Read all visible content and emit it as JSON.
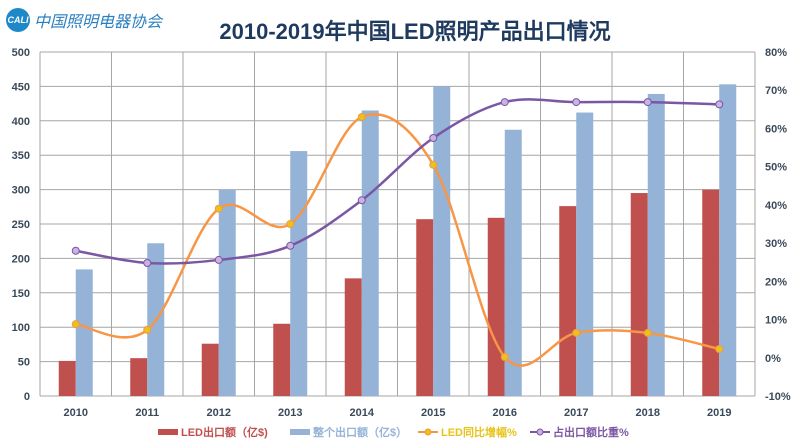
{
  "logo": {
    "mark": "CALI",
    "org": "中国照明电器协会"
  },
  "chart_data": {
    "type": "bar+line",
    "title": "2010-2019年中国LED照明产品出口情况",
    "categories": [
      "2010",
      "2011",
      "2012",
      "2013",
      "2014",
      "2015",
      "2016",
      "2017",
      "2018",
      "2019"
    ],
    "y_left": {
      "range": [
        0,
        500
      ],
      "ticks": [
        "0",
        "50",
        "100",
        "150",
        "200",
        "250",
        "300",
        "350",
        "400",
        "450",
        "500"
      ]
    },
    "y_right": {
      "range": [
        -10,
        80
      ],
      "ticks": [
        "-10%",
        "0%",
        "10%",
        "20%",
        "30%",
        "40%",
        "50%",
        "60%",
        "70%",
        "80%"
      ]
    },
    "grid": true,
    "legend_placement": "bottom",
    "series": [
      {
        "name": "LED出口额（亿$)",
        "type": "bar",
        "axis": "left",
        "color": "#c0504d",
        "values": [
          51,
          55,
          76,
          105,
          171,
          257,
          259,
          276,
          295,
          300
        ]
      },
      {
        "name": "整个出口额（亿$）",
        "type": "bar",
        "axis": "left",
        "color": "#95b3d7",
        "values": [
          184,
          222,
          300,
          356,
          415,
          450,
          387,
          412,
          439,
          453
        ]
      },
      {
        "name": "LED同比增幅%",
        "type": "line",
        "axis": "right",
        "color": "#f79646",
        "marker_color": "#e8c31a",
        "values": [
          8.8,
          7.3,
          39,
          35,
          63,
          50.5,
          0.2,
          6.5,
          6.5,
          2.3
        ]
      },
      {
        "name": "占出口额比重%",
        "type": "line",
        "axis": "right",
        "color": "#7b56a5",
        "marker_color": "#c9b3e0",
        "values": [
          28,
          24.8,
          25.6,
          29.3,
          41.2,
          57.5,
          66.9,
          66.9,
          66.9,
          66.3
        ]
      }
    ]
  }
}
